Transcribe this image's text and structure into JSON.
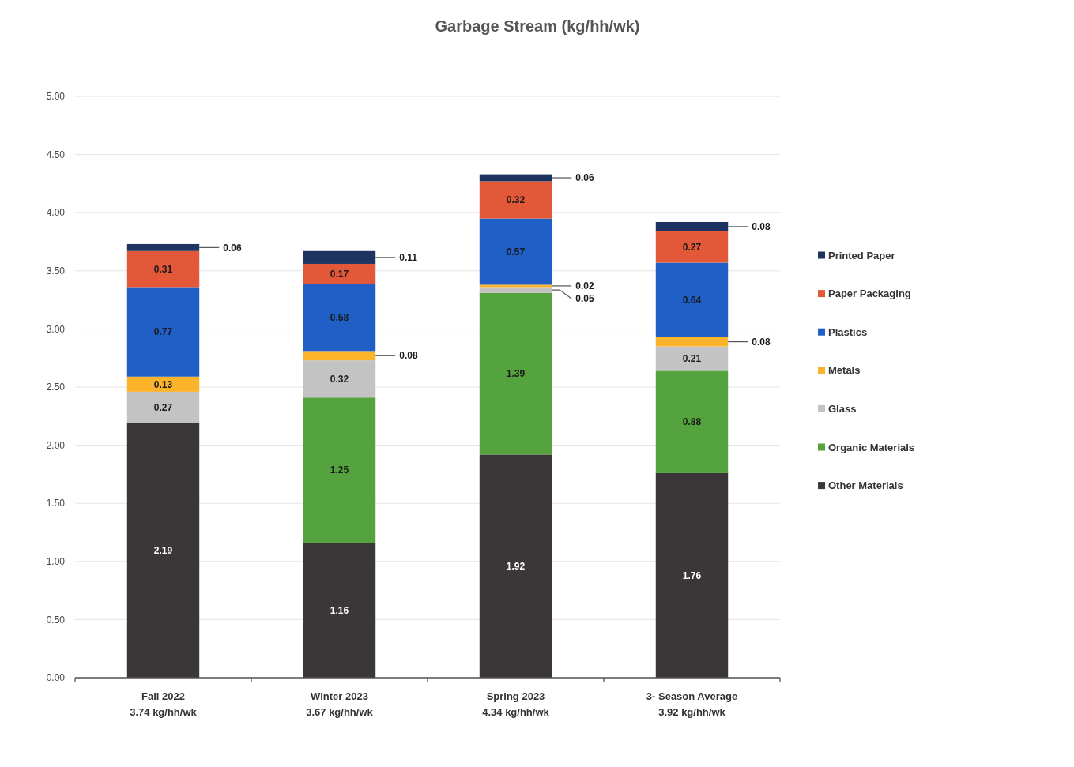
{
  "chart_data": {
    "type": "bar",
    "title": "Garbage Stream (kg/hh/wk)",
    "categories": [
      "Fall 2022",
      "Winter 2023",
      "Spring 2023",
      "3- Season Average"
    ],
    "totals": [
      "3.74 kg/hh/wk",
      "3.67 kg/hh/wk",
      "4.34 kg/hh/wk",
      "3.92 kg/hh/wk"
    ],
    "stacked": true,
    "series": [
      {
        "name": "Other Materials",
        "color": "#3b3638",
        "values": [
          2.19,
          1.16,
          1.92,
          1.76
        ]
      },
      {
        "name": "Organic Materials",
        "color": "#55a33e",
        "values": [
          null,
          1.25,
          1.39,
          0.88
        ]
      },
      {
        "name": "Glass",
        "color": "#c3c3c3",
        "values": [
          0.27,
          0.32,
          0.05,
          0.21
        ]
      },
      {
        "name": "Metals",
        "color": "#fbb32b",
        "values": [
          0.13,
          0.08,
          0.02,
          0.08
        ]
      },
      {
        "name": "Plastics",
        "color": "#1f5fc6",
        "values": [
          0.77,
          0.58,
          0.57,
          0.64
        ]
      },
      {
        "name": "Paper Packaging",
        "color": "#e4583a",
        "values": [
          0.31,
          0.17,
          0.32,
          0.27
        ]
      },
      {
        "name": "Printed Paper",
        "color": "#1d3461",
        "values": [
          0.06,
          0.11,
          0.06,
          0.08
        ]
      }
    ],
    "ylim": [
      0,
      5
    ],
    "yticks": [
      {
        "value": 0,
        "label": "0.00"
      },
      {
        "value": 0.5,
        "label": "0.50"
      },
      {
        "value": 1,
        "label": "1.00"
      },
      {
        "value": 1.5,
        "label": "1.50"
      },
      {
        "value": 2,
        "label": "2.00"
      },
      {
        "value": 2.5,
        "label": "2.50"
      },
      {
        "value": 3,
        "label": "3.00"
      },
      {
        "value": 3.5,
        "label": "3.50"
      },
      {
        "value": 4,
        "label": "4.00"
      },
      {
        "value": 4.5,
        "label": "4.50"
      },
      {
        "value": 5,
        "label": "5.00"
      }
    ],
    "grid": "y",
    "legend": "right",
    "data_labels": true
  }
}
